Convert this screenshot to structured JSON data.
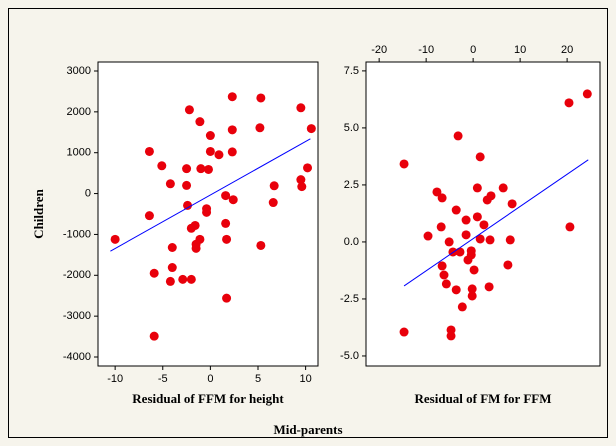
{
  "chart_data": [
    {
      "type": "scatter",
      "xlabel": "Residual of FFM for height",
      "ylabel": "Children",
      "x": [
        -10,
        -6.4,
        -6.4,
        -5.9,
        -5.9,
        -5.1,
        -4.2,
        -4.0,
        -4.0,
        -4.2,
        -2.9,
        -2.0,
        -2.5,
        -2.5,
        -2.2,
        -2.4,
        -2.0,
        -1.6,
        -1.5,
        -1.5,
        -1.1,
        -1.1,
        -1.0,
        -0.4,
        -0.4,
        -0.2,
        0,
        0,
        0.9,
        1.6,
        1.6,
        1.7,
        1.7,
        2.3,
        2.3,
        2.3,
        2.4,
        5.3,
        5.2,
        5.3,
        9.6,
        9.5,
        9.5,
        10.2,
        10.6,
        6.7,
        6.6
      ],
      "values": [
        -1120,
        1030,
        -540,
        -1950,
        -3490,
        680,
        240,
        -1320,
        -1810,
        -2150,
        -2100,
        -2100,
        200,
        610,
        2050,
        -290,
        -850,
        -780,
        -1240,
        -1340,
        -1120,
        1760,
        610,
        -460,
        -370,
        590,
        1030,
        1420,
        950,
        -50,
        -730,
        -1120,
        -2560,
        1020,
        1560,
        2370,
        -150,
        2340,
        1610,
        -1270,
        170,
        2100,
        340,
        630,
        1590,
        190,
        -220
      ],
      "color": "#e8000b",
      "fit": {
        "x": [
          -10.5,
          10.5
        ],
        "values": [
          -1410,
          1340
        ],
        "color": "#0000ff"
      },
      "xlim": [
        -11.8,
        11.3
      ],
      "ylim": [
        -4220,
        3220
      ],
      "xticks": [
        -10,
        -5,
        0,
        5,
        10
      ],
      "yticks": [
        -4000,
        -3000,
        -2000,
        -1000,
        0,
        1000,
        2000,
        3000
      ],
      "xaxis_position": "bottom"
    },
    {
      "type": "scatter",
      "xlabel": "Residual of FM for FFM",
      "x": [
        -14.7,
        -14.7,
        -9.6,
        -7.7,
        -6.6,
        -6.8,
        -6.6,
        -6.2,
        -5.7,
        -5.1,
        -4.3,
        -3.2,
        -3.6,
        -3.6,
        -2.8,
        -2.3,
        -4.7,
        -4.7,
        -1.5,
        -1.5,
        -1.1,
        -0.4,
        -0.4,
        -0.2,
        -0.2,
        0.9,
        0.9,
        1.5,
        1.5,
        2.3,
        3.0,
        3.4,
        3.6,
        3.8,
        6.4,
        7.4,
        7.9,
        8.3,
        20.4,
        20.6,
        24.3,
        0.2
      ],
      "values": [
        3.42,
        -3.95,
        0.26,
        2.19,
        1.93,
        0.66,
        -1.05,
        -1.45,
        -1.84,
        0,
        -0.44,
        4.65,
        1.4,
        -2.1,
        -0.44,
        -2.85,
        -3.86,
        -4.12,
        0.96,
        0.31,
        -0.79,
        -0.39,
        -0.57,
        -2.06,
        -2.37,
        1.1,
        2.37,
        3.73,
        0.13,
        0.75,
        1.84,
        -1.97,
        0.09,
        2.02,
        2.37,
        -1.01,
        0.09,
        1.67,
        6.1,
        0.66,
        6.49,
        -1.23
      ],
      "color": "#e8000b",
      "fit": {
        "x": [
          -14.7,
          24.5
        ],
        "values": [
          -1.93,
          3.6
        ],
        "color": "#0000ff"
      },
      "xlim": [
        -22.8,
        27.0
      ],
      "ylim": [
        -5.44,
        7.89
      ],
      "xticks": [
        -20,
        -10,
        0,
        10,
        20
      ],
      "yticks": [
        {
          "value": -5,
          "label": "-5.0"
        },
        -2.5,
        {
          "value": 0,
          "label": "0.0"
        },
        2.5,
        {
          "value": 5,
          "label": "5.0"
        },
        7.5
      ],
      "xaxis_position": "top"
    }
  ],
  "shared_xlabel": "Mid-parents"
}
